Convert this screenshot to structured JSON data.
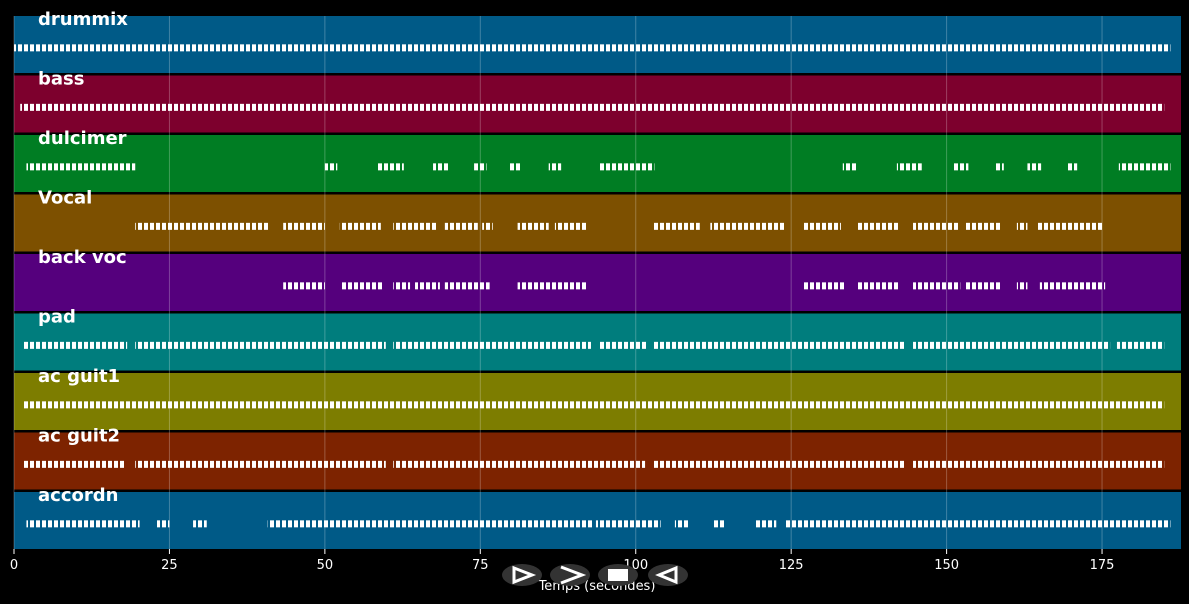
{
  "chart_data": {
    "type": "track-roll",
    "xlabel": "Temps (secondes)",
    "xlim": [
      0,
      187.7
    ],
    "xticks": [
      0,
      25,
      50,
      75,
      100,
      125,
      150,
      175
    ],
    "grid": true,
    "series": [
      {
        "name": "drummix",
        "color": "#005a87",
        "segments": [
          [
            0,
            186
          ]
        ]
      },
      {
        "name": "bass",
        "color": "#7d002d",
        "segments": [
          [
            1,
            185
          ]
        ]
      },
      {
        "name": "dulcimer",
        "color": "#007d23",
        "segments": [
          [
            2,
            19.5
          ],
          [
            50,
            52
          ],
          [
            58.5,
            62.7
          ],
          [
            67.4,
            70
          ],
          [
            74,
            76
          ],
          [
            79.5,
            81.7
          ],
          [
            86,
            88
          ],
          [
            94,
            103
          ],
          [
            133.3,
            135.6
          ],
          [
            142,
            146
          ],
          [
            151,
            153.5
          ],
          [
            157.8,
            159.2
          ],
          [
            163,
            165.2
          ],
          [
            169.5,
            171
          ],
          [
            177.7,
            186
          ]
        ]
      },
      {
        "name": "Vocal",
        "color": "#7d5000",
        "segments": [
          [
            19.5,
            41
          ],
          [
            43.3,
            50
          ],
          [
            52.4,
            59
          ],
          [
            61,
            68
          ],
          [
            69.3,
            74.6
          ],
          [
            75.3,
            77
          ],
          [
            81,
            86
          ],
          [
            87,
            92
          ],
          [
            102.8,
            110.3
          ],
          [
            112,
            124
          ],
          [
            127,
            133
          ],
          [
            135.7,
            142.5
          ],
          [
            144.6,
            152
          ],
          [
            153,
            158.6
          ],
          [
            161.3,
            163
          ],
          [
            164.5,
            175.3
          ]
        ]
      },
      {
        "name": "back voc",
        "color": "#55007d",
        "segments": [
          [
            43.3,
            50
          ],
          [
            52.6,
            59.4
          ],
          [
            61,
            63.7
          ],
          [
            64.5,
            68.5
          ],
          [
            69.3,
            76.5
          ],
          [
            81,
            92
          ],
          [
            127,
            133.7
          ],
          [
            135.6,
            142.5
          ],
          [
            144.6,
            152.2
          ],
          [
            153,
            158.6
          ],
          [
            161.3,
            163
          ],
          [
            165,
            175.5
          ]
        ]
      },
      {
        "name": "pad",
        "color": "#007d7d",
        "segments": [
          [
            1.6,
            18.2
          ],
          [
            19.5,
            59.8
          ],
          [
            61,
            92.8
          ],
          [
            94,
            101.7
          ],
          [
            102.8,
            143.3
          ],
          [
            144.6,
            176.3
          ],
          [
            177.4,
            185
          ]
        ]
      },
      {
        "name": "ac guit1",
        "color": "#7d7d00",
        "segments": [
          [
            1.5,
            185
          ]
        ]
      },
      {
        "name": "ac guit2",
        "color": "#7d2300",
        "segments": [
          [
            1.6,
            18
          ],
          [
            19.5,
            59.8
          ],
          [
            61,
            101.5
          ],
          [
            102.8,
            143.3
          ],
          [
            144.6,
            185
          ]
        ]
      },
      {
        "name": "accordn",
        "color": "#005a87",
        "segments": [
          [
            2,
            20.2
          ],
          [
            23,
            25
          ],
          [
            28.8,
            31
          ],
          [
            40.8,
            93
          ],
          [
            93.6,
            104
          ],
          [
            106.3,
            108.7
          ],
          [
            112.4,
            114.4
          ],
          [
            119.2,
            122.6
          ],
          [
            124,
            186
          ]
        ]
      }
    ]
  }
}
